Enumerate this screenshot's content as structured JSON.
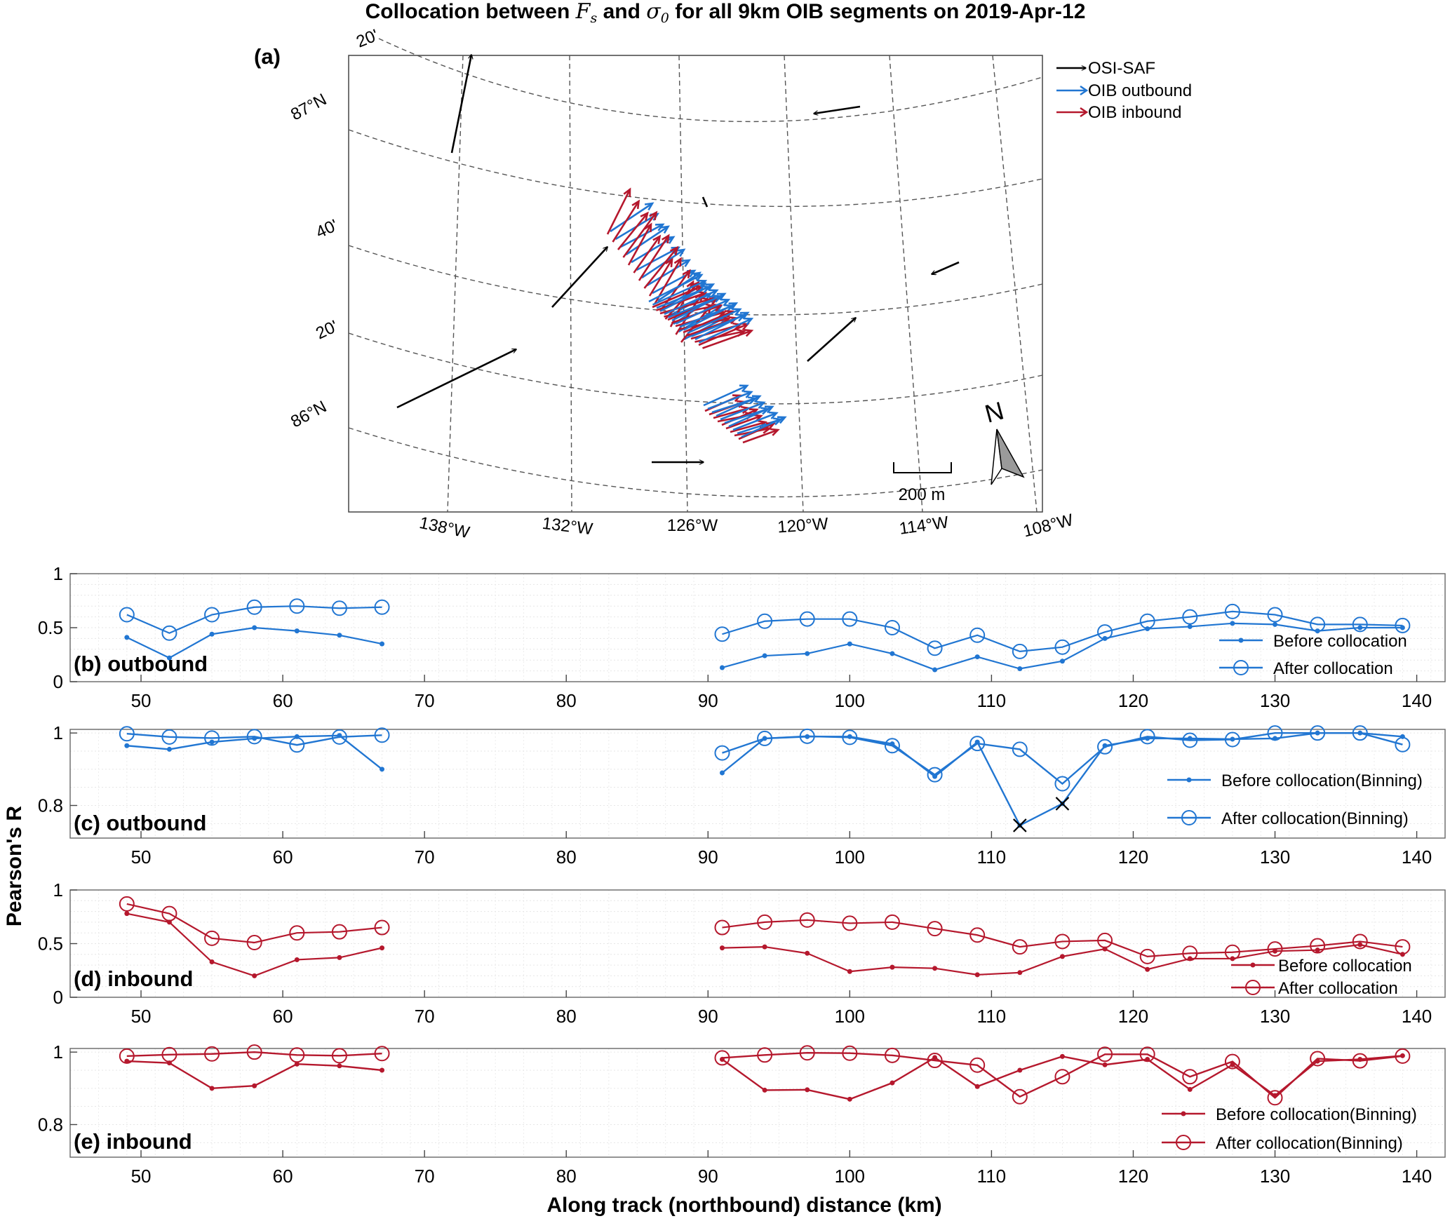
{
  "figure": {
    "title_prefix": "Collocation between",
    "title_var1": "F",
    "title_var1_sub": "s",
    "title_and": "and",
    "title_var2": "σ",
    "title_var2_sub": "0",
    "title_suffix": "for all 9km OIB segments on 2019-Apr-12",
    "ylabel": "Pearson's R",
    "xlabel": "Along track (northbound) distance (km)"
  },
  "colors": {
    "blue": "#2176d2",
    "red": "#b5182d",
    "black": "#000000",
    "grid": "#d9d9d9"
  },
  "map": {
    "label": "(a)",
    "lat_labels": [
      "87°N",
      "40'",
      "20'",
      "86°N",
      "20'"
    ],
    "lon_labels": [
      "138°W",
      "132°W",
      "126°W",
      "120°W",
      "114°W",
      "108°W"
    ],
    "legend": [
      "OSI-SAF",
      "OIB outbound",
      "OIB inbound"
    ],
    "scale_label": "200 m",
    "north_label": "N"
  },
  "chart_data": [
    {
      "panel": "(b) outbound",
      "type": "line",
      "color": "blue",
      "style": "normal",
      "xlim": [
        45,
        142
      ],
      "ylim": [
        0,
        1
      ],
      "xticks": [
        50,
        60,
        70,
        80,
        90,
        100,
        110,
        120,
        130,
        140
      ],
      "yticks": [
        "0",
        "0.5",
        "1"
      ],
      "yticks_v": [
        0,
        0.5,
        1
      ],
      "legend": [
        "Before collocation",
        "After collocation"
      ],
      "x": [
        49,
        52,
        55,
        58,
        61,
        64,
        67,
        91,
        94,
        97,
        100,
        103,
        106,
        109,
        112,
        115,
        118,
        121,
        124,
        127,
        130,
        133,
        136,
        139
      ],
      "series": [
        {
          "name": "Before collocation",
          "values": [
            0.41,
            0.22,
            0.44,
            0.5,
            0.47,
            0.43,
            0.35,
            0.13,
            0.24,
            0.26,
            0.35,
            0.26,
            0.11,
            0.23,
            0.12,
            0.19,
            0.4,
            0.49,
            0.51,
            0.54,
            0.53,
            0.47,
            0.5,
            0.5
          ]
        },
        {
          "name": "After collocation",
          "values": [
            0.62,
            0.45,
            0.62,
            0.69,
            0.7,
            0.68,
            0.69,
            0.44,
            0.56,
            0.58,
            0.58,
            0.5,
            0.31,
            0.43,
            0.28,
            0.32,
            0.46,
            0.56,
            0.6,
            0.65,
            0.62,
            0.53,
            0.53,
            0.52
          ]
        }
      ]
    },
    {
      "panel": "(c) outbound",
      "type": "line",
      "color": "blue",
      "style": "binning",
      "xlim": [
        45,
        142
      ],
      "ylim": [
        0.71,
        1.01
      ],
      "xticks": [
        50,
        60,
        70,
        80,
        90,
        100,
        110,
        120,
        130,
        140
      ],
      "yticks": [
        "0.8",
        "1"
      ],
      "yticks_v": [
        0.8,
        1.0
      ],
      "legend": [
        "Before collocation(Binning)",
        "After collocation(Binning)"
      ],
      "x": [
        49,
        52,
        55,
        58,
        61,
        64,
        67,
        91,
        94,
        97,
        100,
        103,
        106,
        109,
        112,
        115,
        118,
        121,
        124,
        127,
        130,
        133,
        136,
        139
      ],
      "series": [
        {
          "name": "Before collocation(Binning)",
          "values": [
            0.965,
            0.955,
            0.975,
            0.985,
            0.99,
            0.993,
            0.9,
            0.89,
            0.985,
            0.99,
            0.99,
            0.97,
            0.88,
            0.975,
            0.745,
            0.805,
            0.965,
            0.985,
            0.985,
            0.983,
            0.985,
            1.0,
            1.0,
            0.99
          ]
        },
        {
          "name": "After collocation(Binning)",
          "values": [
            0.998,
            0.989,
            0.986,
            0.99,
            0.967,
            0.989,
            0.994,
            0.945,
            0.985,
            0.991,
            0.988,
            0.965,
            0.885,
            0.971,
            0.955,
            0.86,
            0.962,
            0.99,
            0.98,
            0.982,
            1.0,
            1.0,
            1.0,
            0.968
          ]
        }
      ],
      "markers": [
        {
          "x": 112,
          "y": 0.745,
          "symbol": "x"
        },
        {
          "x": 115,
          "y": 0.805,
          "symbol": "x"
        }
      ]
    },
    {
      "panel": "(d) inbound",
      "type": "line",
      "color": "red",
      "style": "normal",
      "xlim": [
        45,
        142
      ],
      "ylim": [
        0,
        1
      ],
      "xticks": [
        50,
        60,
        70,
        80,
        90,
        100,
        110,
        120,
        130,
        140
      ],
      "yticks": [
        "0",
        "0.5",
        "1"
      ],
      "yticks_v": [
        0,
        0.5,
        1
      ],
      "legend": [
        "Before collocation",
        "After collocation"
      ],
      "x": [
        49,
        52,
        55,
        58,
        61,
        64,
        67,
        91,
        94,
        97,
        100,
        103,
        106,
        109,
        112,
        115,
        118,
        121,
        124,
        127,
        130,
        133,
        136,
        139
      ],
      "series": [
        {
          "name": "Before collocation",
          "values": [
            0.78,
            0.7,
            0.33,
            0.2,
            0.35,
            0.37,
            0.46,
            0.46,
            0.47,
            0.41,
            0.24,
            0.28,
            0.27,
            0.21,
            0.23,
            0.38,
            0.45,
            0.26,
            0.36,
            0.36,
            0.43,
            0.44,
            0.49,
            0.4
          ]
        },
        {
          "name": "After collocation",
          "values": [
            0.87,
            0.78,
            0.55,
            0.51,
            0.6,
            0.61,
            0.65,
            0.65,
            0.7,
            0.72,
            0.69,
            0.7,
            0.64,
            0.58,
            0.47,
            0.52,
            0.53,
            0.38,
            0.41,
            0.42,
            0.45,
            0.48,
            0.52,
            0.47
          ]
        }
      ]
    },
    {
      "panel": "(e) inbound",
      "type": "line",
      "color": "red",
      "style": "binning",
      "xlim": [
        45,
        142
      ],
      "ylim": [
        0.71,
        1.01
      ],
      "xticks": [
        50,
        60,
        70,
        80,
        90,
        100,
        110,
        120,
        130,
        140
      ],
      "yticks": [
        "0.8",
        "1"
      ],
      "yticks_v": [
        0.8,
        1.0
      ],
      "legend": [
        "Before collocation(Binning)",
        "After collocation(Binning)"
      ],
      "x": [
        49,
        52,
        55,
        58,
        61,
        64,
        67,
        91,
        94,
        97,
        100,
        103,
        106,
        109,
        112,
        115,
        118,
        121,
        124,
        127,
        130,
        133,
        136,
        139
      ],
      "series": [
        {
          "name": "Before collocation(Binning)",
          "values": [
            0.975,
            0.97,
            0.9,
            0.907,
            0.967,
            0.962,
            0.95,
            0.98,
            0.895,
            0.896,
            0.87,
            0.915,
            0.985,
            0.905,
            0.95,
            0.988,
            0.965,
            0.98,
            0.897,
            0.965,
            0.88,
            0.975,
            0.98,
            0.99
          ]
        },
        {
          "name": "After collocation(Binning)",
          "values": [
            0.989,
            0.993,
            0.995,
            1.0,
            0.992,
            0.99,
            0.996,
            0.984,
            0.992,
            0.998,
            0.997,
            0.991,
            0.977,
            0.964,
            0.877,
            0.932,
            0.994,
            0.994,
            0.932,
            0.974,
            0.874,
            0.982,
            0.976,
            0.989
          ]
        }
      ]
    }
  ]
}
